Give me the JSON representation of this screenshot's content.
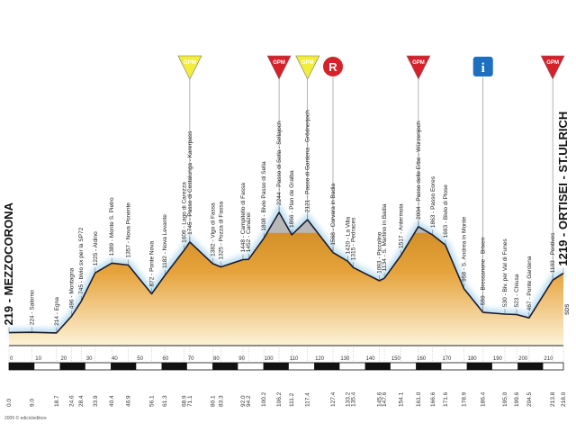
{
  "chart_data": {
    "type": "area",
    "title": "",
    "xlabel": "",
    "ylabel": "",
    "xlim": [
      0,
      218
    ],
    "start": {
      "name": "MEZZOCORONA",
      "altitude": 219
    },
    "finish": {
      "name": "ORTISEI - ST.ULRICH",
      "altitude": 1219
    },
    "km_ticks": [
      0,
      10,
      20,
      30,
      40,
      50,
      60,
      70,
      80,
      90,
      100,
      110,
      120,
      130,
      140,
      150,
      160,
      170,
      180,
      190,
      200,
      210
    ],
    "points": [
      {
        "km": 0.0,
        "alt": 219,
        "label": "MEZZOCORONA",
        "km_label": "0.0"
      },
      {
        "km": 9.0,
        "alt": 224,
        "label": "Salorno",
        "km_label": "9.0"
      },
      {
        "km": 18.7,
        "alt": 214,
        "label": "Egna",
        "km_label": "18.7"
      },
      {
        "km": 24.6,
        "alt": 496,
        "label": "Montagna",
        "km_label": "24.6"
      },
      {
        "km": 28.4,
        "alt": 745,
        "label": "bivio sx per la SP72",
        "km_label": "28.4"
      },
      {
        "km": 33.9,
        "alt": 1225,
        "label": "Aldino",
        "km_label": "33.9"
      },
      {
        "km": 40.4,
        "alt": 1389,
        "label": "Monte S. Pietro",
        "km_label": "40.4"
      },
      {
        "km": 46.9,
        "alt": 1357,
        "label": "Nova Ponente",
        "km_label": "46.9"
      },
      {
        "km": 56.1,
        "alt": 872,
        "label": "Ponte Nova",
        "km_label": "56.1"
      },
      {
        "km": 61.3,
        "alt": 1182,
        "label": "Nova Levante",
        "km_label": "61.3"
      },
      {
        "km": 68.9,
        "alt": 1609,
        "label": "Lago di Carezza",
        "km_label": "68.9"
      },
      {
        "km": 71.1,
        "alt": 1745,
        "label": "Passo di Costalunga - Karerpass",
        "km_label": "71.1"
      },
      {
        "km": 80.1,
        "alt": 1382,
        "label": "Vigo di Fassa",
        "km_label": "80.1"
      },
      {
        "km": 83.3,
        "alt": 1325,
        "label": "Pozza di Fassa",
        "km_label": "83.3"
      },
      {
        "km": 92.0,
        "alt": 1448,
        "label": "Campitello di Fassa",
        "km_label": "92.0"
      },
      {
        "km": 94.2,
        "alt": 1452,
        "label": "Canazei",
        "km_label": "94.2"
      },
      {
        "km": 100.2,
        "alt": 1808,
        "label": "Bivio Passo di Sella",
        "km_label": "100.2"
      },
      {
        "km": 106.2,
        "alt": 2244,
        "label": "Passo di Sella - Sellajoch",
        "km_label": "106.2"
      },
      {
        "km": 111.2,
        "alt": 1866,
        "label": "Plan de Gralba",
        "km_label": "111.2"
      },
      {
        "km": 117.4,
        "alt": 2121,
        "label": "Passo di Gardena - Grödnerjoch",
        "km_label": "117.4"
      },
      {
        "km": 127.4,
        "alt": 1568,
        "label": "Corvara in Badia",
        "km_label": "127.4"
      },
      {
        "km": 133.2,
        "alt": 1420,
        "label": "La Villa",
        "km_label": "133.2"
      },
      {
        "km": 135.4,
        "alt": 1315,
        "label": "Pedraces",
        "km_label": "135.4"
      },
      {
        "km": 145.6,
        "alt": 1093,
        "label": "Piccolino",
        "km_label": "145.6"
      },
      {
        "km": 147.6,
        "alt": 1134,
        "label": "S. Martino in Badia",
        "km_label": "147.6"
      },
      {
        "km": 154.1,
        "alt": 1517,
        "label": "Antermoia",
        "km_label": "154.1"
      },
      {
        "km": 161.0,
        "alt": 2004,
        "label": "Passo delle Erbe - Würzenjoch",
        "km_label": "161.0"
      },
      {
        "km": 166.6,
        "alt": 1863,
        "label": "Passo Eores",
        "km_label": "166.6"
      },
      {
        "km": 171.6,
        "alt": 1693,
        "label": "Bivio di Plose",
        "km_label": "171.6"
      },
      {
        "km": 178.9,
        "alt": 958,
        "label": "S. Andrea in Monte",
        "km_label": "178.9"
      },
      {
        "km": 186.4,
        "alt": 559,
        "label": "Bressanone - Brixen",
        "km_label": "186.4"
      },
      {
        "km": 195.0,
        "alt": 530,
        "label": "Biv. per Val di Funes",
        "km_label": "195.0"
      },
      {
        "km": 199.6,
        "alt": 523,
        "label": "Chiusa",
        "km_label": "199.6"
      },
      {
        "km": 204.5,
        "alt": 467,
        "label": "Ponte Gardena",
        "km_label": "204.5"
      },
      {
        "km": 213.8,
        "alt": 1103,
        "label": "Pontives",
        "km_label": "213.8"
      },
      {
        "km": 218.0,
        "alt": 1219,
        "label": "ORTISEI - ST.ULRICH",
        "km_label": "218.0"
      }
    ],
    "markers": [
      {
        "km": 71.1,
        "type": "triangle",
        "text": "GPM",
        "color": "#f2ec3b"
      },
      {
        "km": 106.2,
        "type": "triangle",
        "text": "GPM",
        "color": "#d6202a"
      },
      {
        "km": 117.4,
        "type": "triangle",
        "text": "GPM",
        "color": "#f2ec3b"
      },
      {
        "km": 127.4,
        "type": "circle",
        "text": "R",
        "color": "#d6202a"
      },
      {
        "km": 161.0,
        "type": "triangle",
        "text": "GPM",
        "color": "#d6202a"
      },
      {
        "km": 186.4,
        "type": "square",
        "text": "i",
        "color": "#1e6fc0"
      },
      {
        "km": 213.8,
        "type": "triangle",
        "text": "GPM",
        "color": "#d6202a"
      }
    ],
    "colors": {
      "fill_low": "#c9861e",
      "fill_high": "#f6d489",
      "peak_fill": "#b8b8b8",
      "line": "#1a1a2e",
      "halo": "#bfe0f2"
    }
  },
  "footer": {
    "copyright": "2005 © edicicleditore",
    "brand": "SDS"
  }
}
